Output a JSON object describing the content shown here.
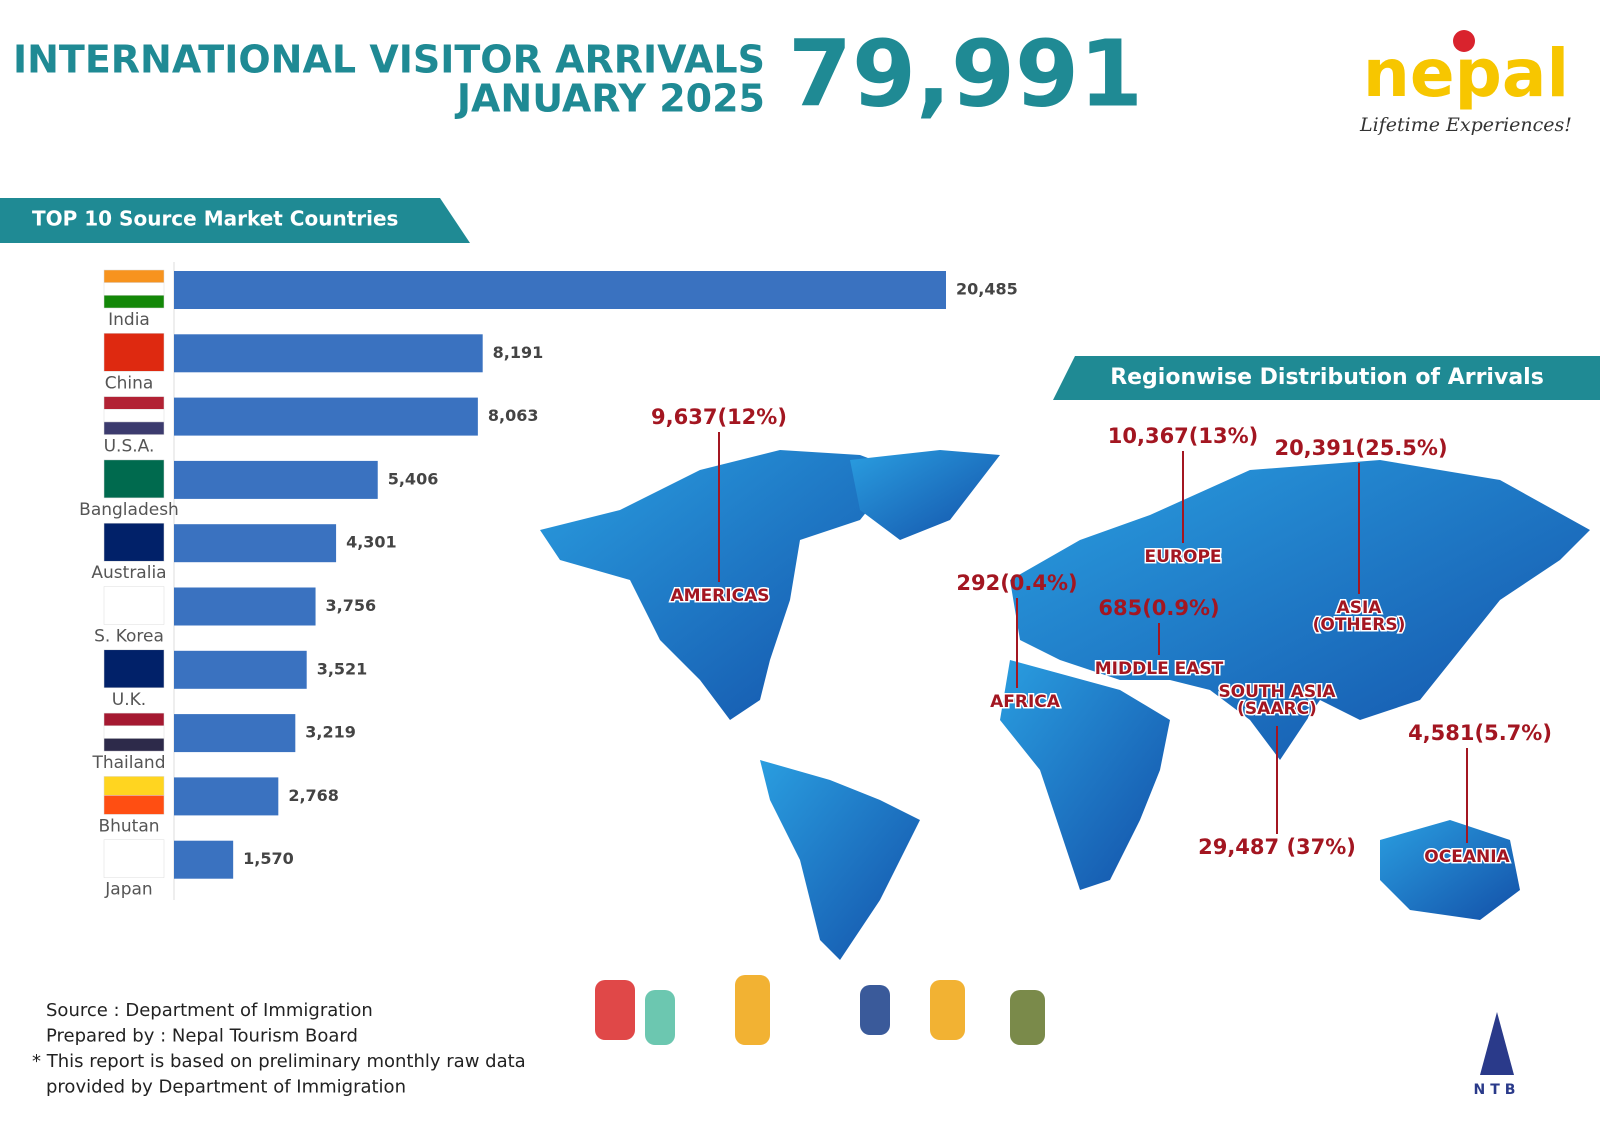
{
  "header": {
    "title_line1": "INTERNATIONAL VISITOR ARRIVALS",
    "title_line2": "JANUARY 2025",
    "total": "79,991",
    "logo": "nepal",
    "tagline": "Lifetime Experiences!",
    "ntb": "NTB"
  },
  "chart_data": {
    "type": "hbar",
    "title": "TOP 10 Source Market Countries",
    "categories": [
      "India",
      "China",
      "U.S.A.",
      "Bangladesh",
      "Australia",
      "S. Korea",
      "U.K.",
      "Thailand",
      "Bhutan",
      "Japan"
    ],
    "values": [
      20485,
      8191,
      8063,
      5406,
      4301,
      3756,
      3521,
      3219,
      2768,
      1570
    ],
    "value_labels": [
      "20,485",
      "8,191",
      "8,063",
      "5,406",
      "4,301",
      "3,756",
      "3,521",
      "3,219",
      "2,768",
      "1,570"
    ],
    "color": "#3a72c0"
  },
  "map": {
    "title": "Regionwise Distribution of Arrivals",
    "regions": [
      {
        "name": [
          "AMERICAS"
        ],
        "value": "9,637(12%)"
      },
      {
        "name": [
          "EUROPE"
        ],
        "value": "10,367(13%)"
      },
      {
        "name": [
          "ASIA",
          "(OTHERS)"
        ],
        "value": "20,391(25.5%)"
      },
      {
        "name": [
          "AFRICA"
        ],
        "value": "292(0.4%)"
      },
      {
        "name": [
          "MIDDLE EAST"
        ],
        "value": "685(0.9%)"
      },
      {
        "name": [
          "SOUTH ASIA",
          "(SAARC)"
        ],
        "value": "29,487 (37%)"
      },
      {
        "name": [
          "OCEANIA"
        ],
        "value": "4,581(5.7%)"
      }
    ]
  },
  "footer": {
    "lines": [
      "Source : Department of Immigration",
      "Prepared by : Nepal Tourism Board",
      "* This report is based on preliminary monthly raw data",
      "provided by Department of Immigration"
    ]
  }
}
